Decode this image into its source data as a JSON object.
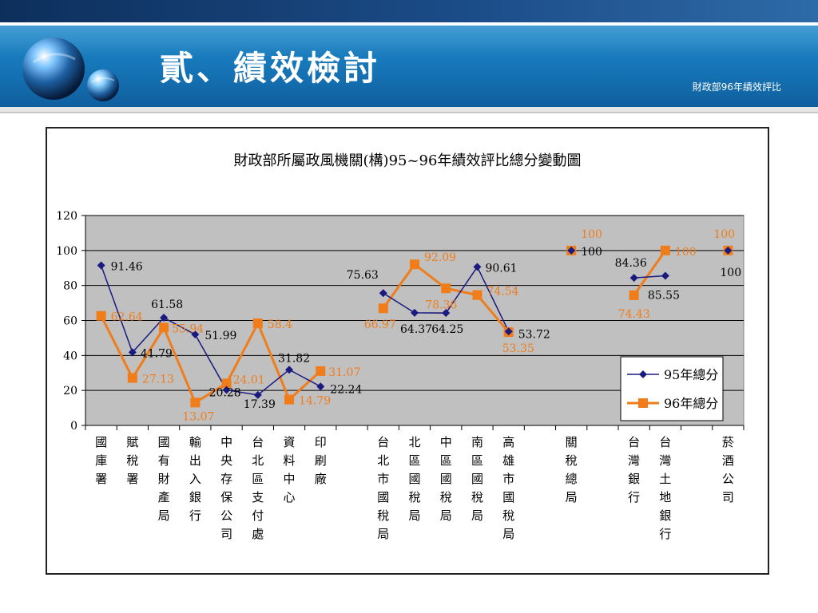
{
  "slide": {
    "title": "貳、績效檢討",
    "subtitle": "財政部96年績效評比"
  },
  "colors": {
    "series1": "#1a1a80",
    "series2": "#f07c1a",
    "plot_bg": "#c0c0c0",
    "banner": "#1676b8"
  },
  "icons": [
    "sphere-logo-icon"
  ],
  "chart_data": {
    "type": "line",
    "title": "財政部所屬政風機關(構)95~96年績效評比總分變動圖",
    "xlabel": "",
    "ylabel": "",
    "ylim": [
      0,
      120
    ],
    "yticks": [
      "0",
      "20",
      "40",
      "60",
      "80",
      "100",
      "120"
    ],
    "grid": true,
    "legend": "right",
    "categories": [
      "國庫署",
      "賦稅署",
      "國有財產局",
      "輸出入銀行",
      "中央存保公司",
      "台北區支付處",
      "資料中心",
      "印刷廠",
      "",
      "台北市國稅局",
      "北區國稅局",
      "中區國稅局",
      "南區國稅局",
      "高雄市國稅局",
      "",
      "關稅總局",
      "",
      "台灣銀行",
      "台灣土地銀行",
      "",
      "菸酒公司"
    ],
    "series": [
      {
        "name": "95年總分",
        "values": [
          91.46,
          41.79,
          61.58,
          51.99,
          20.28,
          17.39,
          31.82,
          22.24,
          null,
          75.63,
          64.37,
          64.25,
          90.61,
          53.72,
          null,
          100,
          null,
          84.36,
          85.55,
          null,
          100
        ],
        "labels": [
          "91.46",
          "41.79",
          "61.58",
          "51.99",
          "20.28",
          "17.39",
          "31.82",
          "22.24",
          "",
          "75.63",
          "64.37",
          "64.25",
          "90.61",
          "53.72",
          "",
          "100",
          "",
          "84.36",
          "85.55",
          "",
          "100"
        ]
      },
      {
        "name": "96年總分",
        "values": [
          62.64,
          27.13,
          55.94,
          13.07,
          24.01,
          58.4,
          14.79,
          31.07,
          null,
          66.97,
          92.09,
          78.36,
          74.54,
          53.35,
          null,
          100,
          null,
          74.43,
          100,
          null,
          100
        ],
        "labels": [
          "62.64",
          "27.13",
          "55.94",
          "13.07",
          "24.01",
          "58.4",
          "14.79",
          "31.07",
          "",
          "66.97",
          "92.09",
          "78.36",
          "74.54",
          "53.35",
          "",
          "100",
          "",
          "74.43",
          "100",
          "",
          "100"
        ]
      }
    ]
  }
}
